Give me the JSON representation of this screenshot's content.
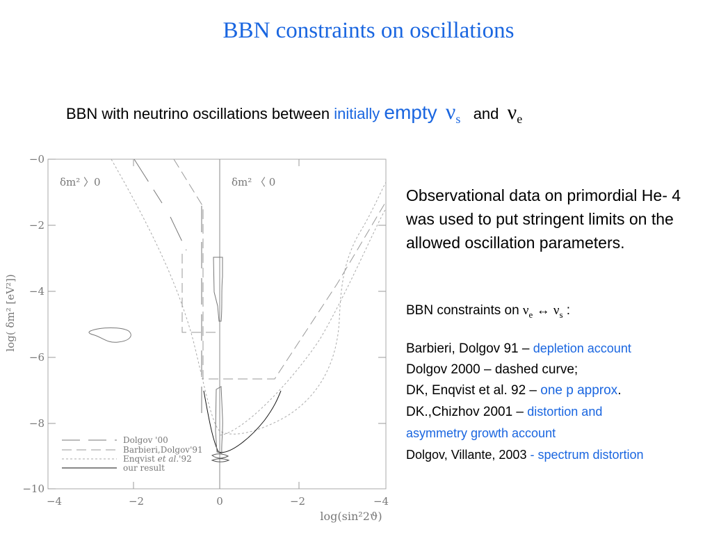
{
  "slide": {
    "title": "BBN constraints on oscillations",
    "subtitle": {
      "part1": "BBN with neutrino oscillations  between ",
      "initially": "initially",
      "empty": "empty",
      "nu": "ν",
      "nu_s_sub": "s",
      "and": "and",
      "nu_e_sub": "e"
    },
    "notes": {
      "paragraph": "Observational data on primordial He- 4 was   used to put stringent limits on the allowed oscillation parameters.",
      "constraints_label": "BBN constraints on ",
      "nu_e_sub": "e",
      "arrow": "↔",
      "nu_s_sub": "s",
      "colon": " :",
      "refs": [
        {
          "text": "Barbieri, Dolgov 91 – ",
          "highlight": "depletion account"
        },
        {
          "text": "Dolgov 2000 – dashed curve;",
          "highlight": ""
        },
        {
          "text": "DK, Enqvist et al. 92 – ",
          "highlight": "one p approx",
          "tail": "."
        },
        {
          "text": "DK.,Chizhov 2001 – ",
          "highlight": "distortion  and"
        },
        {
          "text": "",
          "highlight": "asymmetry growth account"
        },
        {
          "text": "Dolgov, Villante, 2003  ",
          "highlight": "- spectrum distortion"
        }
      ]
    },
    "plot": {
      "y_ticks": [
        "−0",
        "−2",
        "−4",
        "−6",
        "−8",
        "−10"
      ],
      "x_ticks": [
        "−4",
        "−2",
        "0",
        "−2",
        "−4"
      ],
      "ylabel": "log(  δm²  [eV²])",
      "xlabel": "log(sin²2ϑ)",
      "region_left": "δm² 〉0",
      "region_right": "δm² 〈 0",
      "legend": [
        {
          "label": "Dolgov  '00"
        },
        {
          "label": "Barbieri,Dolgov'91"
        },
        {
          "label_a": "Enqvist  ",
          "label_b": "et  al.",
          "label_c": "'92"
        },
        {
          "label": "our  result"
        }
      ]
    }
  }
}
